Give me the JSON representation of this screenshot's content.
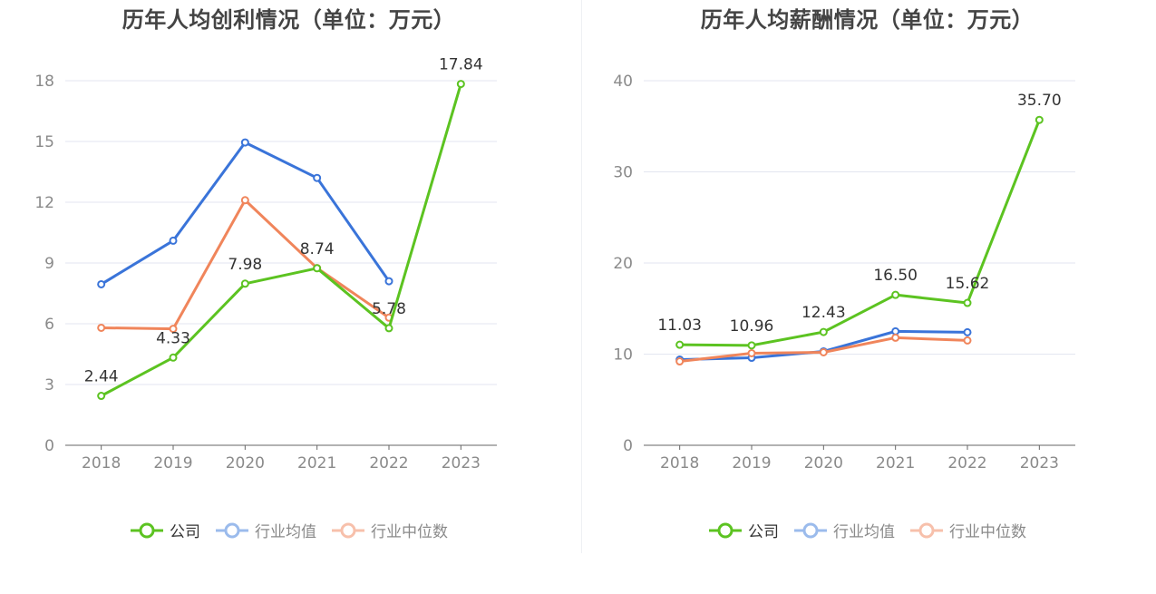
{
  "charts": [
    {
      "title": "历年人均创利情况（单位：万元）",
      "legend": [
        "公司",
        "行业均值",
        "行业中位数"
      ]
    },
    {
      "title": "历年人均薪酬情况（单位：万元）",
      "legend": [
        "公司",
        "行业均值",
        "行业中位数"
      ]
    }
  ],
  "colors": {
    "company": "#5cc321",
    "industry_avg": "#3a74d9",
    "industry_median": "#f0855b",
    "legend_avg_faded": "#9bbbec",
    "legend_median_faded": "#f7c0ab",
    "grid": "#e3e6f0",
    "axis": "#666666",
    "tick_text": "#8a8a8a",
    "label_text": "#333333"
  },
  "chart_data": [
    {
      "type": "line",
      "title": "历年人均创利情况（单位：万元）",
      "categories": [
        "2018",
        "2019",
        "2020",
        "2021",
        "2022",
        "2023"
      ],
      "ylim": [
        0,
        18
      ],
      "yticks": [
        0,
        3,
        6,
        9,
        12,
        15,
        18
      ],
      "grid": true,
      "legend_position": "bottom",
      "series": [
        {
          "name": "公司",
          "values": [
            2.44,
            4.33,
            7.98,
            8.74,
            5.78,
            17.84
          ],
          "labels": [
            "2.44",
            "4.33",
            "7.98",
            "8.74",
            "5.78",
            "17.84"
          ]
        },
        {
          "name": "行业均值",
          "values": [
            7.95,
            10.1,
            14.95,
            13.2,
            8.1,
            null
          ]
        },
        {
          "name": "行业中位数",
          "values": [
            5.8,
            5.75,
            12.1,
            8.75,
            6.3,
            null
          ]
        }
      ]
    },
    {
      "type": "line",
      "title": "历年人均薪酬情况（单位：万元）",
      "categories": [
        "2018",
        "2019",
        "2020",
        "2021",
        "2022",
        "2023"
      ],
      "ylim": [
        0,
        40
      ],
      "yticks": [
        0,
        10,
        20,
        30,
        40
      ],
      "grid": true,
      "legend_position": "bottom",
      "series": [
        {
          "name": "公司",
          "values": [
            11.03,
            10.96,
            12.43,
            16.5,
            15.62,
            35.7
          ],
          "labels": [
            "11.03",
            "10.96",
            "12.43",
            "16.50",
            "15.62",
            "35.70"
          ]
        },
        {
          "name": "行业均值",
          "values": [
            9.4,
            9.6,
            10.3,
            12.5,
            12.4,
            null
          ]
        },
        {
          "name": "行业中位数",
          "values": [
            9.2,
            10.1,
            10.2,
            11.8,
            11.5,
            null
          ]
        }
      ]
    }
  ]
}
